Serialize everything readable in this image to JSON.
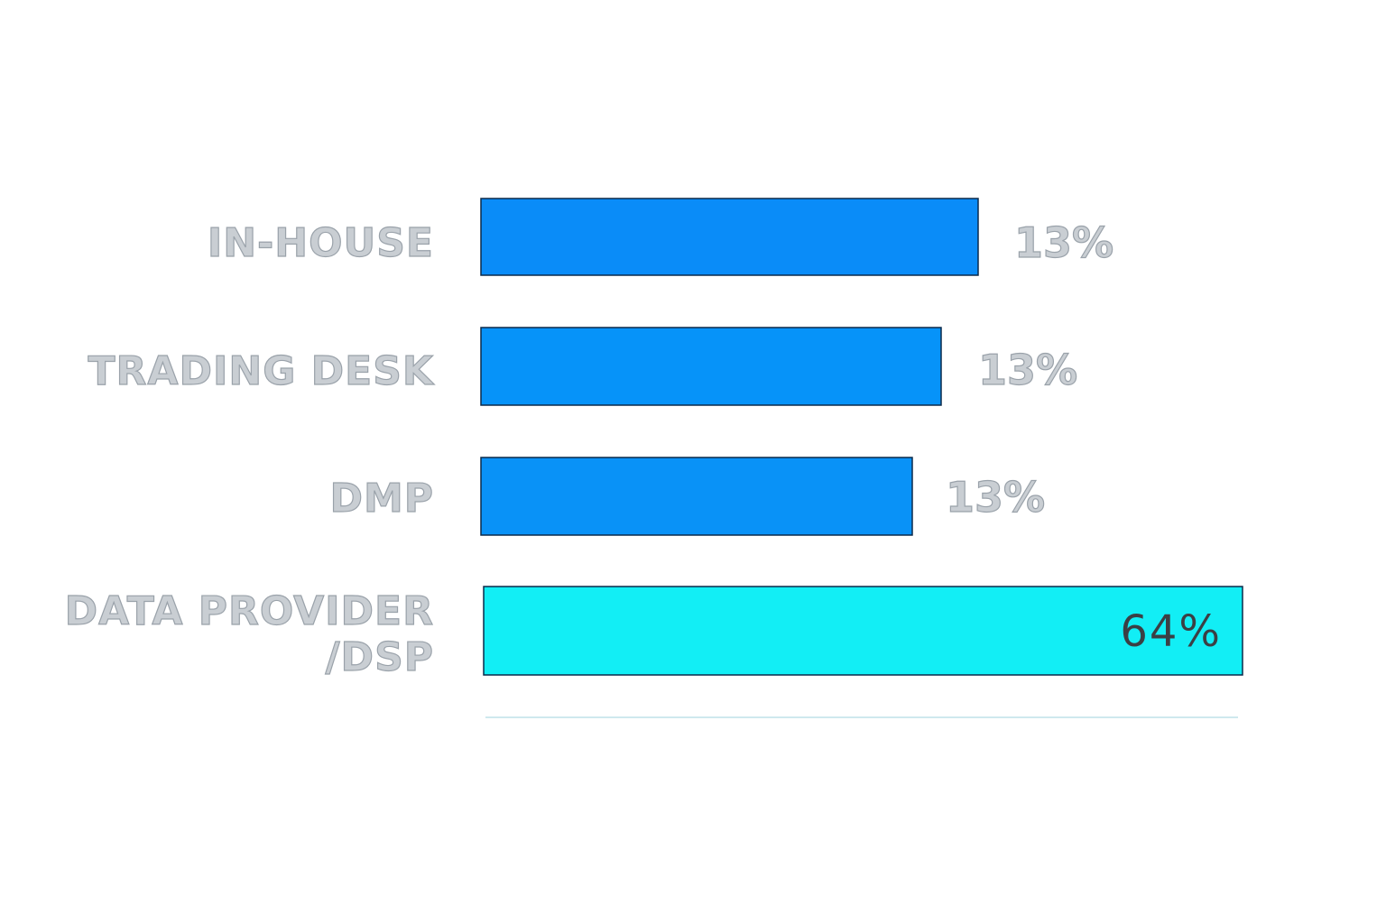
{
  "chart_data": {
    "type": "bar",
    "orientation": "horizontal",
    "categories": [
      "IN-HOUSE",
      "TRADING DESK",
      "DMP",
      "DATA PROVIDER /DSP"
    ],
    "category_lines": [
      [
        "IN-HOUSE"
      ],
      [
        "TRADING DESK"
      ],
      [
        "DMP"
      ],
      [
        "DATA PROVIDER",
        "/DSP"
      ]
    ],
    "values": [
      13,
      13,
      13,
      64
    ],
    "value_labels": [
      "13%",
      "13%",
      "13%",
      "64%"
    ],
    "colors": [
      "#0a8cf8",
      "#0693f9",
      "#0992f7",
      "#12eef5"
    ],
    "title": "",
    "xlabel": "",
    "ylabel": "",
    "grid": false,
    "legend": "none"
  }
}
